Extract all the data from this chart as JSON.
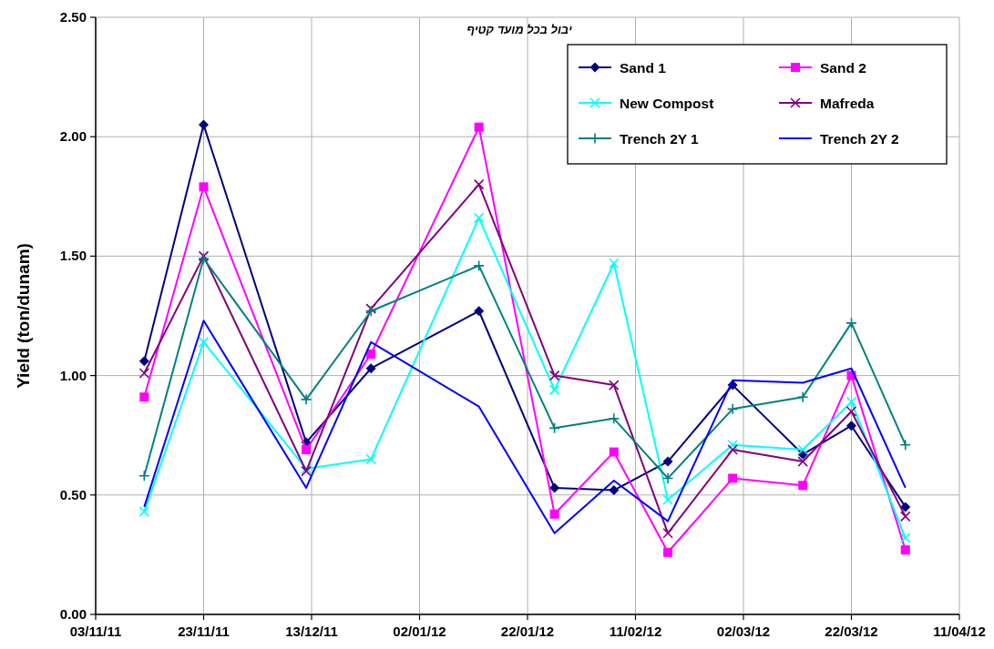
{
  "chart_data": {
    "type": "line",
    "title": "יבול בכל מועד קטיף",
    "ylabel": "Yield (ton/dunam)",
    "x": [
      "2011-11-12",
      "2011-11-23",
      "2011-12-12",
      "2011-12-24",
      "2012-01-13",
      "2012-01-27",
      "2012-02-07",
      "2012-02-17",
      "2012-02-29",
      "2012-03-13",
      "2012-03-22",
      "2012-04-01"
    ],
    "series": [
      {
        "name": "Sand 1",
        "color": "#000080",
        "marker": "diamond",
        "values": [
          1.06,
          2.05,
          0.72,
          1.03,
          1.27,
          0.53,
          0.52,
          0.64,
          0.96,
          0.67,
          0.79,
          0.45
        ]
      },
      {
        "name": "Sand 2",
        "color": "#ff00ff",
        "marker": "square",
        "values": [
          0.91,
          1.79,
          0.69,
          1.09,
          2.04,
          0.42,
          0.68,
          0.26,
          0.57,
          0.54,
          1.0,
          0.27
        ]
      },
      {
        "name": "New Compost",
        "color": "#00ffff",
        "marker": "cross",
        "values": [
          0.43,
          1.14,
          0.61,
          0.65,
          1.66,
          0.94,
          1.47,
          0.48,
          0.71,
          0.69,
          0.89,
          0.32
        ]
      },
      {
        "name": "Mafreda",
        "color": "#800080",
        "marker": "cross",
        "values": [
          1.01,
          1.5,
          0.6,
          1.28,
          1.8,
          1.0,
          0.96,
          0.34,
          0.69,
          0.64,
          0.85,
          0.41
        ]
      },
      {
        "name": "Trench 2Y 1",
        "color": "#008080",
        "marker": "plus",
        "values": [
          0.58,
          1.49,
          0.9,
          1.27,
          1.46,
          0.78,
          0.82,
          0.57,
          0.86,
          0.91,
          1.22,
          0.71
        ]
      },
      {
        "name": "Trench 2Y 2",
        "color": "#0000ff",
        "marker": "none",
        "values": [
          0.45,
          1.23,
          0.53,
          1.14,
          0.87,
          0.34,
          0.56,
          0.39,
          0.98,
          0.97,
          1.03,
          0.53
        ]
      }
    ],
    "xlim": [
      "2011-11-03",
      "2012-04-11"
    ],
    "xticks": [
      {
        "value": "2011-11-03",
        "label": "03/11/11"
      },
      {
        "value": "2011-11-23",
        "label": "23/11/11"
      },
      {
        "value": "2011-12-13",
        "label": "13/12/11"
      },
      {
        "value": "2012-01-02",
        "label": "02/01/12"
      },
      {
        "value": "2012-01-22",
        "label": "22/01/12"
      },
      {
        "value": "2012-02-11",
        "label": "11/02/12"
      },
      {
        "value": "2012-03-02",
        "label": "02/03/12"
      },
      {
        "value": "2012-03-22",
        "label": "22/03/12"
      },
      {
        "value": "2012-04-11",
        "label": "11/04/12"
      }
    ],
    "ylim": [
      0,
      2.5
    ],
    "yticks": [
      {
        "value": 0,
        "label": "0.00"
      },
      {
        "value": 0.5,
        "label": "0.50"
      },
      {
        "value": 1,
        "label": "1.00"
      },
      {
        "value": 1.5,
        "label": "1.50"
      },
      {
        "value": 2,
        "label": "2.00"
      },
      {
        "value": 2.5,
        "label": "2.50"
      }
    ],
    "grid": true,
    "legend": "top right"
  }
}
